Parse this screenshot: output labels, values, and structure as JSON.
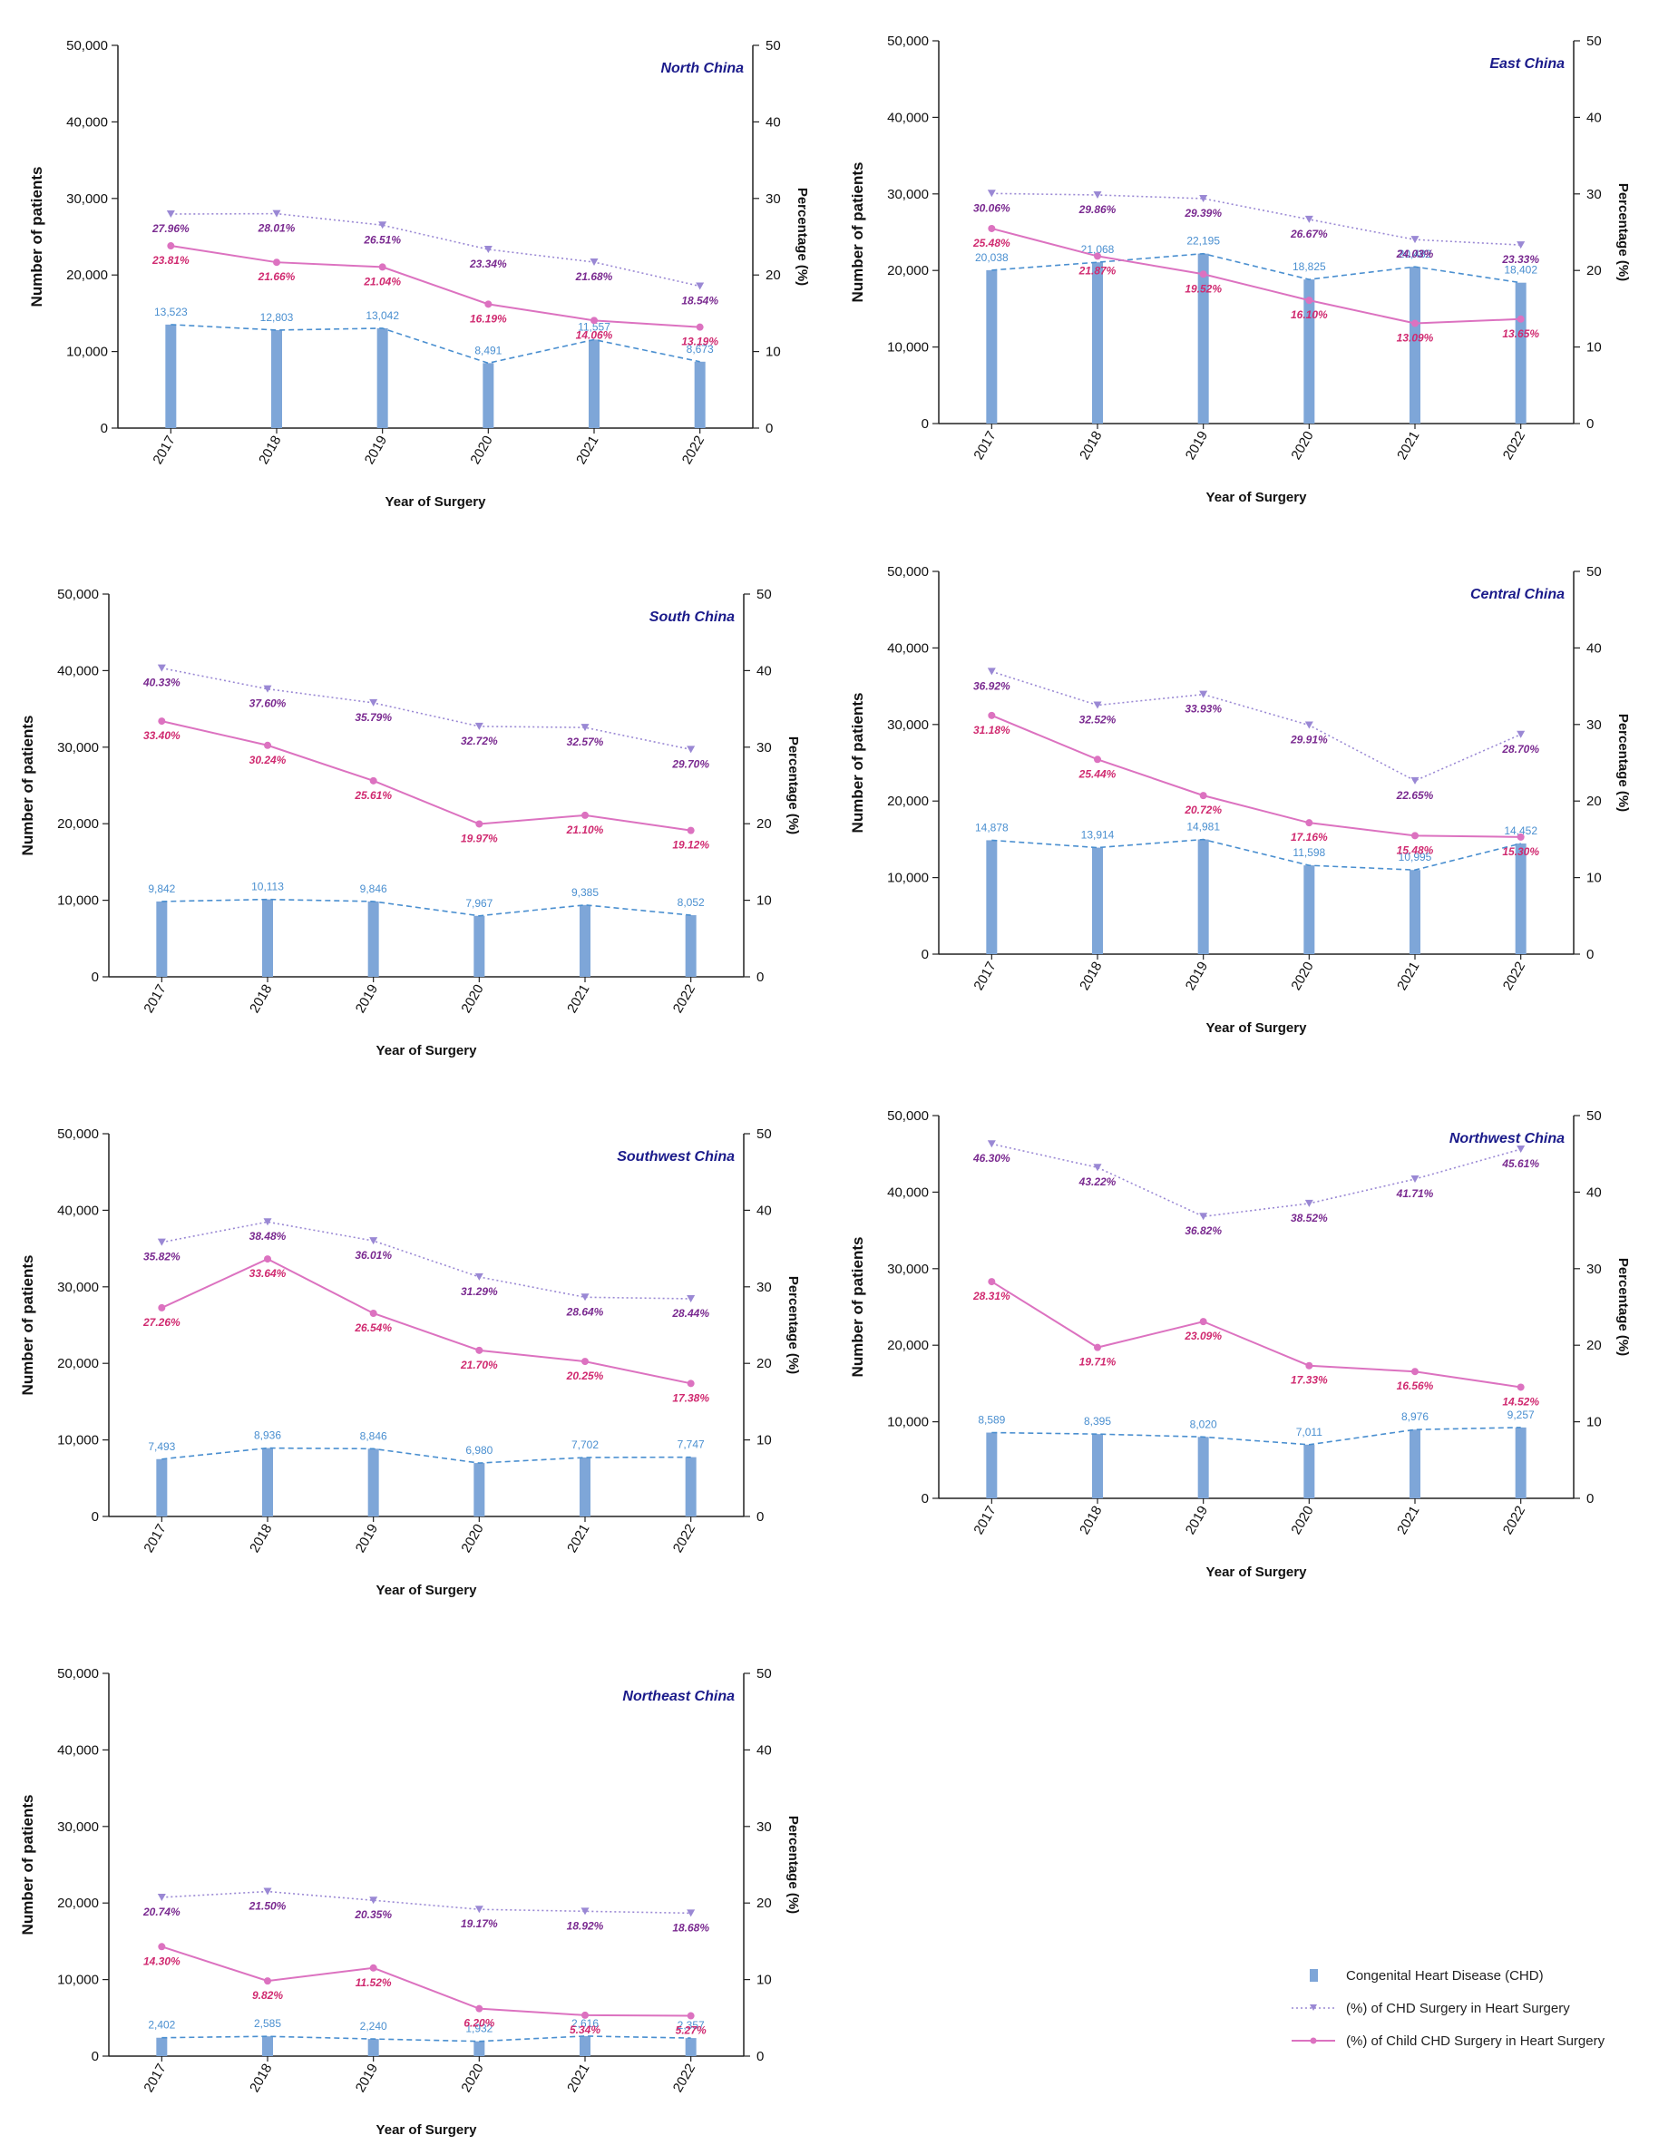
{
  "axis_labels": {
    "x": "Year of Surgery",
    "y_left": "Number of patients",
    "y_right": "Percentage (%)"
  },
  "legend": {
    "chd": "Congenital Heart Disease (CHD)",
    "chd_pct": "(%) of CHD Surgery in Heart Surgery",
    "child_pct": "(%) of Child CHD Surgery in Heart Surgery"
  },
  "colors": {
    "bar": "#7ea6d8",
    "bar_label": "#4a8fd0",
    "chd_pct": "#9a88d4",
    "chd_pct_label": "#7a2a90",
    "child_pct": "#dc72c0",
    "child_pct_label": "#d02a70",
    "region_title": "#1a1a8a"
  },
  "chart_data": [
    {
      "type": "bar",
      "title": "North China",
      "categories": [
        "2017",
        "2018",
        "2019",
        "2020",
        "2021",
        "2022"
      ],
      "series": [
        {
          "name": "Congenital Heart Disease (CHD)",
          "axis": "left",
          "values": [
            13523,
            12803,
            13042,
            8491,
            11557,
            8673
          ],
          "labels": [
            "13,523",
            "12,803",
            "13,042",
            "8,491",
            "11,557",
            "8,673"
          ]
        },
        {
          "name": "(%) of CHD Surgery in Heart Surgery",
          "axis": "right",
          "values": [
            27.96,
            28.01,
            26.51,
            23.34,
            21.68,
            18.54
          ],
          "labels": [
            "27.96%",
            "28.01%",
            "26.51%",
            "23.34%",
            "21.68%",
            "18.54%"
          ]
        },
        {
          "name": "(%) of Child CHD Surgery in Heart Surgery",
          "axis": "right",
          "values": [
            23.81,
            21.66,
            21.04,
            16.19,
            14.06,
            13.19
          ],
          "labels": [
            "23.81%",
            "21.66%",
            "21.04%",
            "16.19%",
            "14.06%",
            "13.19%"
          ]
        }
      ],
      "xlabel": "Year of Surgery",
      "ylabel": "Number of patients",
      "y2label": "Percentage (%)",
      "ylim": [
        0,
        50000
      ],
      "y2lim": [
        0,
        50
      ],
      "yticks": [
        "0",
        "10,000",
        "20,000",
        "30,000",
        "40,000",
        "50,000"
      ],
      "y2ticks": [
        "0",
        "10",
        "20",
        "30",
        "40",
        "50"
      ]
    },
    {
      "type": "bar",
      "title": "East China",
      "categories": [
        "2017",
        "2018",
        "2019",
        "2020",
        "2021",
        "2022"
      ],
      "series": [
        {
          "name": "Congenital Heart Disease (CHD)",
          "axis": "left",
          "values": [
            20038,
            21068,
            22195,
            18825,
            20482,
            18402
          ],
          "labels": [
            "20,038",
            "21,068",
            "22,195",
            "18,825",
            "20,482",
            "18,402"
          ]
        },
        {
          "name": "(%) of CHD Surgery in Heart Surgery",
          "axis": "right",
          "values": [
            30.06,
            29.86,
            29.39,
            26.67,
            24.03,
            23.33
          ],
          "labels": [
            "30.06%",
            "29.86%",
            "29.39%",
            "26.67%",
            "24.03%",
            "23.33%"
          ]
        },
        {
          "name": "(%) of Child CHD Surgery in Heart Surgery",
          "axis": "right",
          "values": [
            25.48,
            21.87,
            19.52,
            16.1,
            13.09,
            13.65
          ],
          "labels": [
            "25.48%",
            "21.87%",
            "19.52%",
            "16.10%",
            "13.09%",
            "13.65%"
          ]
        }
      ],
      "xlabel": "Year of Surgery",
      "ylabel": "Number of patients",
      "y2label": "Percentage (%)",
      "ylim": [
        0,
        50000
      ],
      "y2lim": [
        0,
        50
      ],
      "yticks": [
        "0",
        "10,000",
        "20,000",
        "30,000",
        "40,000",
        "50,000"
      ],
      "y2ticks": [
        "0",
        "10",
        "20",
        "30",
        "40",
        "50"
      ]
    },
    {
      "type": "bar",
      "title": "South China",
      "categories": [
        "2017",
        "2018",
        "2019",
        "2020",
        "2021",
        "2022"
      ],
      "series": [
        {
          "name": "Congenital Heart Disease (CHD)",
          "axis": "left",
          "values": [
            9842,
            10113,
            9846,
            7967,
            9385,
            8052
          ],
          "labels": [
            "9,842",
            "10,113",
            "9,846",
            "7,967",
            "9,385",
            "8,052"
          ]
        },
        {
          "name": "(%) of CHD Surgery in Heart Surgery",
          "axis": "right",
          "values": [
            40.33,
            37.6,
            35.79,
            32.72,
            32.57,
            29.7
          ],
          "labels": [
            "40.33%",
            "37.60%",
            "35.79%",
            "32.72%",
            "32.57%",
            "29.70%"
          ]
        },
        {
          "name": "(%) of Child CHD Surgery in Heart Surgery",
          "axis": "right",
          "values": [
            33.4,
            30.24,
            25.61,
            19.97,
            21.1,
            19.12
          ],
          "labels": [
            "33.40%",
            "30.24%",
            "25.61%",
            "19.97%",
            "21.10%",
            "19.12%"
          ]
        }
      ],
      "xlabel": "Year of Surgery",
      "ylabel": "Number of patients",
      "y2label": "Percentage (%)",
      "ylim": [
        0,
        50000
      ],
      "y2lim": [
        0,
        50
      ],
      "yticks": [
        "0",
        "10,000",
        "20,000",
        "30,000",
        "40,000",
        "50,000"
      ],
      "y2ticks": [
        "0",
        "10",
        "20",
        "30",
        "40",
        "50"
      ]
    },
    {
      "type": "bar",
      "title": "Central China",
      "categories": [
        "2017",
        "2018",
        "2019",
        "2020",
        "2021",
        "2022"
      ],
      "series": [
        {
          "name": "Congenital Heart Disease (CHD)",
          "axis": "left",
          "values": [
            14878,
            13914,
            14981,
            11598,
            10995,
            14452
          ],
          "labels": [
            "14,878",
            "13,914",
            "14,981",
            "11,598",
            "10,995",
            "14,452"
          ]
        },
        {
          "name": "(%) of CHD Surgery in Heart Surgery",
          "axis": "right",
          "values": [
            36.92,
            32.52,
            33.93,
            29.91,
            22.65,
            28.7
          ],
          "labels": [
            "36.92%",
            "32.52%",
            "33.93%",
            "29.91%",
            "22.65%",
            "28.70%"
          ]
        },
        {
          "name": "(%) of Child CHD Surgery in Heart Surgery",
          "axis": "right",
          "values": [
            31.18,
            25.44,
            20.72,
            17.16,
            15.48,
            15.3
          ],
          "labels": [
            "31.18%",
            "25.44%",
            "20.72%",
            "17.16%",
            "15.48%",
            "15.30%"
          ]
        }
      ],
      "xlabel": "Year of Surgery",
      "ylabel": "Number of patients",
      "y2label": "Percentage (%)",
      "ylim": [
        0,
        50000
      ],
      "y2lim": [
        0,
        50
      ],
      "yticks": [
        "0",
        "10,000",
        "20,000",
        "30,000",
        "40,000",
        "50,000"
      ],
      "y2ticks": [
        "0",
        "10",
        "20",
        "30",
        "40",
        "50"
      ]
    },
    {
      "type": "bar",
      "title": "Southwest China",
      "categories": [
        "2017",
        "2018",
        "2019",
        "2020",
        "2021",
        "2022"
      ],
      "series": [
        {
          "name": "Congenital Heart Disease (CHD)",
          "axis": "left",
          "values": [
            7493,
            8936,
            8846,
            6980,
            7702,
            7747
          ],
          "labels": [
            "7,493",
            "8,936",
            "8,846",
            "6,980",
            "7,702",
            "7,747"
          ]
        },
        {
          "name": "(%) of CHD Surgery in Heart Surgery",
          "axis": "right",
          "values": [
            35.82,
            38.48,
            36.01,
            31.29,
            28.64,
            28.44
          ],
          "labels": [
            "35.82%",
            "38.48%",
            "36.01%",
            "31.29%",
            "28.64%",
            "28.44%"
          ]
        },
        {
          "name": "(%) of Child CHD Surgery in Heart Surgery",
          "axis": "right",
          "values": [
            27.26,
            33.64,
            26.54,
            21.7,
            20.25,
            17.38
          ],
          "labels": [
            "27.26%",
            "33.64%",
            "26.54%",
            "21.70%",
            "20.25%",
            "17.38%"
          ]
        }
      ],
      "xlabel": "Year of Surgery",
      "ylabel": "Number of patients",
      "y2label": "Percentage (%)",
      "ylim": [
        0,
        50000
      ],
      "y2lim": [
        0,
        50
      ],
      "yticks": [
        "0",
        "10,000",
        "20,000",
        "30,000",
        "40,000",
        "50,000"
      ],
      "y2ticks": [
        "0",
        "10",
        "20",
        "30",
        "40",
        "50"
      ]
    },
    {
      "type": "bar",
      "title": "Northwest China",
      "categories": [
        "2017",
        "2018",
        "2019",
        "2020",
        "2021",
        "2022"
      ],
      "series": [
        {
          "name": "Congenital Heart Disease (CHD)",
          "axis": "left",
          "values": [
            8589,
            8395,
            8020,
            7011,
            8976,
            9257
          ],
          "labels": [
            "8,589",
            "8,395",
            "8,020",
            "7,011",
            "8,976",
            "9,257"
          ]
        },
        {
          "name": "(%) of CHD Surgery in Heart Surgery",
          "axis": "right",
          "values": [
            46.3,
            43.22,
            36.82,
            38.52,
            41.71,
            45.61
          ],
          "labels": [
            "46.30%",
            "43.22%",
            "36.82%",
            "38.52%",
            "41.71%",
            "45.61%"
          ]
        },
        {
          "name": "(%) of Child CHD Surgery in Heart Surgery",
          "axis": "right",
          "values": [
            28.31,
            19.71,
            23.09,
            17.33,
            16.56,
            14.52
          ],
          "labels": [
            "28.31%",
            "19.71%",
            "23.09%",
            "17.33%",
            "16.56%",
            "14.52%"
          ]
        }
      ],
      "xlabel": "Year of Surgery",
      "ylabel": "Number of patients",
      "y2label": "Percentage (%)",
      "ylim": [
        0,
        50000
      ],
      "y2lim": [
        0,
        50
      ],
      "yticks": [
        "0",
        "10,000",
        "20,000",
        "30,000",
        "40,000",
        "50,000"
      ],
      "y2ticks": [
        "0",
        "10",
        "20",
        "30",
        "40",
        "50"
      ]
    },
    {
      "type": "bar",
      "title": "Northeast China",
      "categories": [
        "2017",
        "2018",
        "2019",
        "2020",
        "2021",
        "2022"
      ],
      "series": [
        {
          "name": "Congenital Heart Disease (CHD)",
          "axis": "left",
          "values": [
            2402,
            2585,
            2240,
            1932,
            2616,
            2357
          ],
          "labels": [
            "2,402",
            "2,585",
            "2,240",
            "1,932",
            "2,616",
            "2,357"
          ]
        },
        {
          "name": "(%) of CHD Surgery in Heart Surgery",
          "axis": "right",
          "values": [
            20.74,
            21.5,
            20.35,
            19.17,
            18.92,
            18.68
          ],
          "labels": [
            "20.74%",
            "21.50%",
            "20.35%",
            "19.17%",
            "18.92%",
            "18.68%"
          ]
        },
        {
          "name": "(%) of Child CHD Surgery in Heart Surgery",
          "axis": "right",
          "values": [
            14.3,
            9.82,
            11.52,
            6.2,
            5.34,
            5.27
          ],
          "labels": [
            "14.30%",
            "9.82%",
            "11.52%",
            "6.20%",
            "5.34%",
            "5.27%"
          ]
        }
      ],
      "xlabel": "Year of Surgery",
      "ylabel": "Number of patients",
      "y2label": "Percentage (%)",
      "ylim": [
        0,
        50000
      ],
      "y2lim": [
        0,
        50
      ],
      "yticks": [
        "0",
        "10,000",
        "20,000",
        "30,000",
        "40,000",
        "50,000"
      ],
      "y2ticks": [
        "0",
        "10",
        "20",
        "30",
        "40",
        "50"
      ]
    }
  ]
}
